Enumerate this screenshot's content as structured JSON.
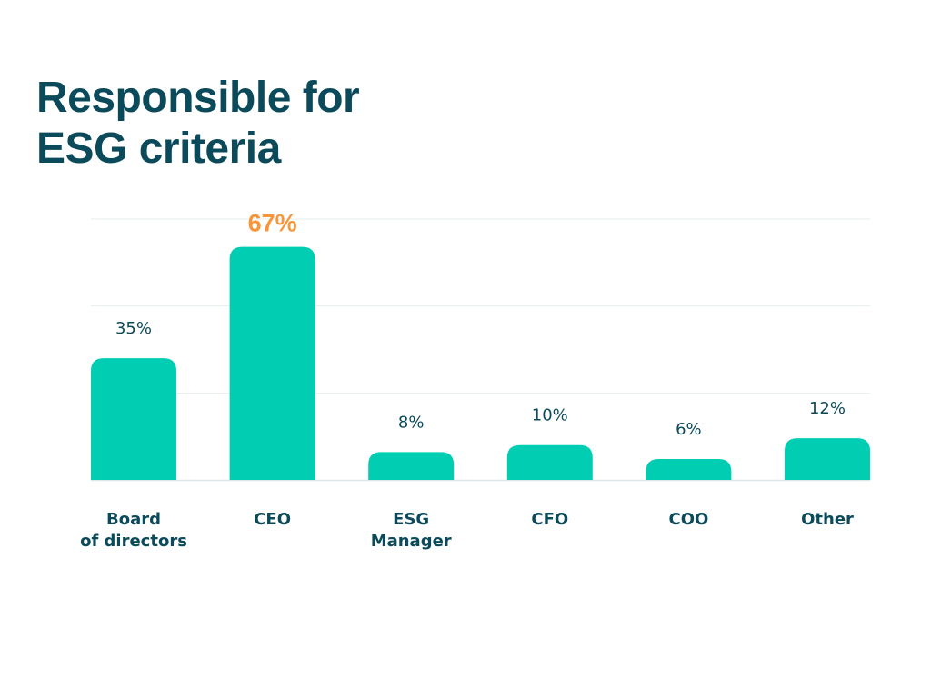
{
  "title_lines": [
    "Responsible for",
    "ESG criteria"
  ],
  "colors": {
    "bar": "#00cdb1",
    "title": "#0b4a5a",
    "label": "#0b4a5a",
    "highlight_label": "#f7973a",
    "grid": "#e6edef"
  },
  "chart_data": {
    "type": "bar",
    "title": "Responsible for ESG criteria",
    "xlabel": "",
    "ylabel": "",
    "categories": [
      [
        "Board",
        "of directors"
      ],
      [
        "CEO"
      ],
      [
        "ESG",
        "Manager"
      ],
      [
        "CFO"
      ],
      [
        "COO"
      ],
      [
        "Other"
      ]
    ],
    "values": [
      35,
      67,
      8,
      10,
      6,
      12
    ],
    "data_labels": [
      "35%",
      "67%",
      "8%",
      "10%",
      "6%",
      "12%"
    ],
    "highlight_index": 1,
    "ylim": [
      0,
      75
    ],
    "gridlines": [
      25,
      50,
      75
    ],
    "grid": true,
    "legend": "none"
  }
}
